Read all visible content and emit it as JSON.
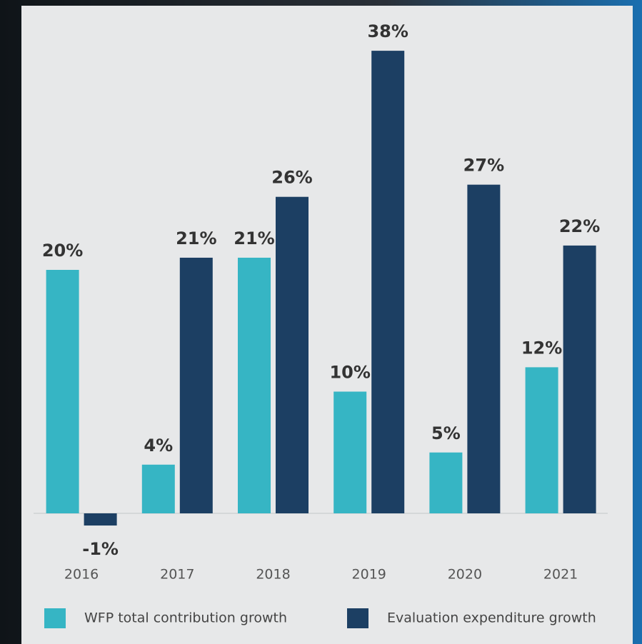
{
  "chart_data": {
    "type": "bar",
    "categories": [
      "2016",
      "2017",
      "2018",
      "2019",
      "2020",
      "2021"
    ],
    "series": [
      {
        "name": "WFP total contribution growth",
        "color": "#36b5c4",
        "values": [
          20,
          4,
          21,
          10,
          5,
          12
        ],
        "value_labels": [
          "20%",
          "4%",
          "21%",
          "10%",
          "5%",
          "12%"
        ]
      },
      {
        "name": "Evaluation expenditure growth",
        "color": "#1c3f63",
        "values": [
          -1,
          21,
          26,
          38,
          27,
          22
        ],
        "value_labels": [
          "-1%",
          "21%",
          "26%",
          "38%",
          "27%",
          "22%"
        ]
      }
    ]
  }
}
